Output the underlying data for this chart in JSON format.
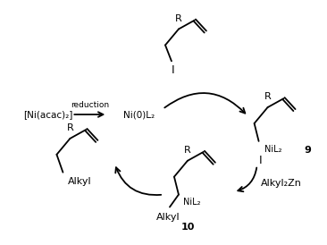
{
  "bg_color": "#ffffff",
  "text_color": "#000000",
  "figsize": [
    3.66,
    2.74
  ],
  "dpi": 100,
  "labels": {
    "ni_acac": "[Ni(acac)₂]",
    "reduction": "reduction",
    "ni0l2": "Ni(0)L₂",
    "compound9": "9",
    "compound10": "10",
    "alkylzn": "Alkyl₂Zn",
    "alkyl_prod": "Alkyl",
    "alkyl_10": "Alkyl",
    "nil2_9": "NiL₂",
    "nil2_10": "NiL₂",
    "I_top": "I",
    "I_9": "I",
    "R_top": "R",
    "R_9": "R",
    "R_10": "R",
    "R_prod": "R"
  }
}
